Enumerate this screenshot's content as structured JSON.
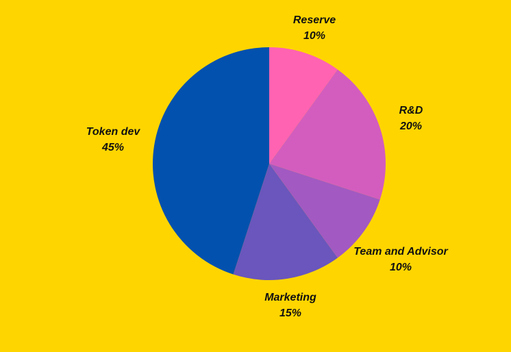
{
  "background_color": "#FFD500",
  "chart_data": {
    "type": "pie",
    "title": "",
    "slices": [
      {
        "name": "Reserve",
        "value": 10,
        "value_label": "10%",
        "color": "#FF63B2"
      },
      {
        "name": "R&D",
        "value": 20,
        "value_label": "20%",
        "color": "#D35DBE"
      },
      {
        "name": "Team and Advisor",
        "value": 10,
        "value_label": "10%",
        "color": "#A259C2"
      },
      {
        "name": "Marketing",
        "value": 15,
        "value_label": "15%",
        "color": "#6A56BC"
      },
      {
        "name": "Token dev",
        "value": 45,
        "value_label": "45%",
        "color": "#0351AE"
      }
    ],
    "start_angle": "12 o'clock",
    "direction": "clockwise",
    "legend": "none",
    "labels": "outside-slices"
  }
}
